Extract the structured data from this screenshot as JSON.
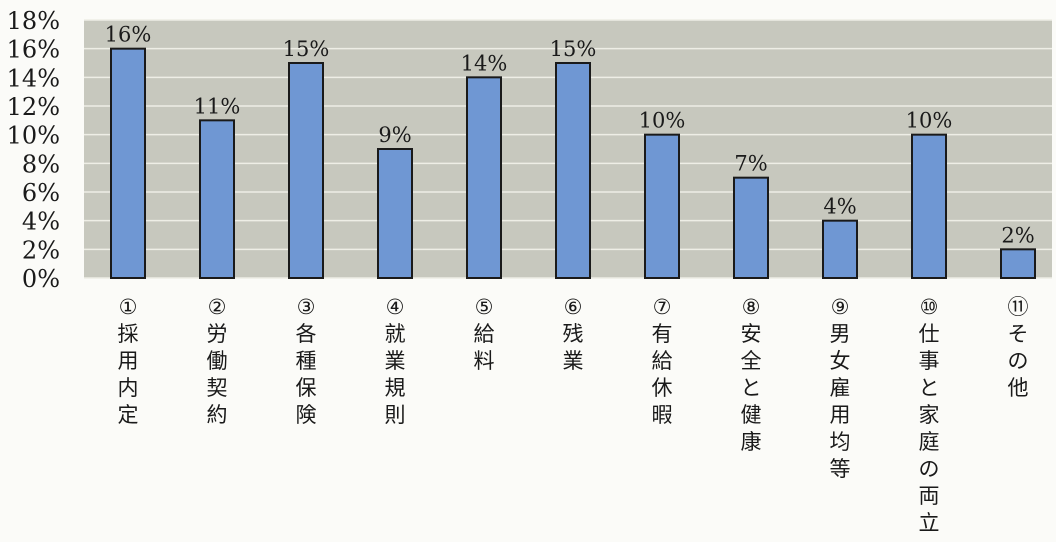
{
  "chart_data": {
    "type": "bar",
    "categories": [
      "①採用内定",
      "②労働契約",
      "③各種保険",
      "④就業規則",
      "⑤給料",
      "⑥残業",
      "⑦有給休暇",
      "⑧安全と健康",
      "⑨男女雇用均等",
      "⑩仕事と家庭の両立",
      "⑪その他"
    ],
    "values": [
      16,
      11,
      15,
      9,
      14,
      15,
      10,
      7,
      4,
      10,
      2
    ],
    "value_labels": [
      "16%",
      "11%",
      "15%",
      "9%",
      "14%",
      "15%",
      "10%",
      "7%",
      "4%",
      "10%",
      "2%"
    ],
    "ylim": [
      0,
      18
    ],
    "yticks": [
      0,
      2,
      4,
      6,
      8,
      10,
      12,
      14,
      16,
      18
    ],
    "ytick_labels": [
      "0%",
      "2%",
      "4%",
      "6%",
      "8%",
      "10%",
      "12%",
      "14%",
      "16%",
      "18%"
    ],
    "grid": true,
    "title": "",
    "xlabel": "",
    "ylabel": "",
    "colors": {
      "bar_fill": "#6f97d3",
      "bar_stroke": "#1a1a1a",
      "plot_background": "#c7c8be",
      "gridline": "#eeeee6",
      "text": "#1a1a1a"
    }
  }
}
